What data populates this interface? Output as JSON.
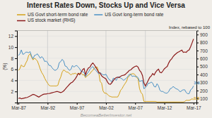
{
  "chart_data": {
    "type": "line",
    "title": "Interest Rates Down, Stocks Up and Vice Versa",
    "ylabel": "(%)",
    "y2label": "Index, rebased to 100",
    "watermark": "BecomeaBetterInvestor.net",
    "background_color": "#f0ede8",
    "grid": true,
    "legend": "top",
    "xlim": [
      1987.0,
      2017.75
    ],
    "xticks": [
      {
        "value": 1987.25,
        "label": "Mar-87"
      },
      {
        "value": 1992.25,
        "label": "Mar-92"
      },
      {
        "value": 1997.25,
        "label": "Mar-97"
      },
      {
        "value": 2002.25,
        "label": "Mar-02"
      },
      {
        "value": 2007.25,
        "label": "Mar-07"
      },
      {
        "value": 2012.25,
        "label": "Mar-12"
      },
      {
        "value": 2017.25,
        "label": "Mar-17"
      }
    ],
    "ylim": [
      0,
      13
    ],
    "yticks": [
      2,
      4,
      6,
      8,
      10,
      12
    ],
    "y2lim": [
      50,
      950
    ],
    "y2ticks": [
      100,
      200,
      300,
      400,
      500,
      600,
      700,
      800,
      900
    ],
    "vlines": [
      1992.25,
      2002.25,
      2009.0
    ],
    "annotations": [
      {
        "text": "3.0",
        "x": 2017.3,
        "y": 290,
        "axis": "y2",
        "color": "#4a90c4"
      },
      {
        "text": "0.5",
        "x": 2017.3,
        "y": 100,
        "axis": "y2",
        "color": "#d4a017"
      }
    ],
    "x": [
      1987.25,
      1987.5,
      1987.75,
      1988.0,
      1988.25,
      1988.5,
      1988.75,
      1989.0,
      1989.25,
      1989.5,
      1989.75,
      1990.0,
      1990.25,
      1990.5,
      1990.75,
      1991.0,
      1991.25,
      1991.5,
      1991.75,
      1992.0,
      1992.25,
      1992.5,
      1992.75,
      1993.0,
      1993.25,
      1993.5,
      1993.75,
      1994.0,
      1994.25,
      1994.5,
      1994.75,
      1995.0,
      1995.25,
      1995.5,
      1995.75,
      1996.0,
      1996.25,
      1996.5,
      1996.75,
      1997.0,
      1997.25,
      1997.5,
      1997.75,
      1998.0,
      1998.25,
      1998.5,
      1998.75,
      1999.0,
      1999.25,
      1999.5,
      1999.75,
      2000.0,
      2000.25,
      2000.5,
      2000.75,
      2001.0,
      2001.25,
      2001.5,
      2001.75,
      2002.0,
      2002.25,
      2002.5,
      2002.75,
      2003.0,
      2003.25,
      2003.5,
      2003.75,
      2004.0,
      2004.25,
      2004.5,
      2004.75,
      2005.0,
      2005.25,
      2005.5,
      2005.75,
      2006.0,
      2006.25,
      2006.5,
      2006.75,
      2007.0,
      2007.25,
      2007.5,
      2007.75,
      2008.0,
      2008.25,
      2008.5,
      2008.75,
      2009.0,
      2009.25,
      2009.5,
      2009.75,
      2010.0,
      2010.25,
      2010.5,
      2010.75,
      2011.0,
      2011.25,
      2011.5,
      2011.75,
      2012.0,
      2012.25,
      2012.5,
      2012.75,
      2013.0,
      2013.25,
      2013.5,
      2013.75,
      2014.0,
      2014.25,
      2014.5,
      2014.75,
      2015.0,
      2015.25,
      2015.5,
      2015.75,
      2016.0,
      2016.25,
      2016.5,
      2016.75,
      2017.0,
      2017.25
    ],
    "series": [
      {
        "name": "US Govt short-term bond rate",
        "color": "#d4a017",
        "values": [
          5.8,
          6.1,
          6.8,
          6.5,
          6.5,
          7.1,
          7.6,
          8.5,
          8.8,
          8.2,
          7.7,
          8.0,
          7.8,
          7.5,
          6.8,
          6.0,
          5.4,
          5.0,
          4.4,
          3.9,
          3.5,
          3.1,
          3.0,
          3.0,
          3.0,
          3.0,
          3.0,
          3.1,
          4.0,
          4.6,
          5.5,
          5.9,
          5.7,
          5.5,
          5.5,
          5.2,
          5.0,
          5.2,
          5.2,
          5.3,
          5.1,
          5.2,
          5.3,
          5.3,
          5.0,
          5.0,
          4.5,
          4.8,
          5.0,
          5.2,
          5.6,
          5.8,
          6.2,
          6.4,
          6.4,
          5.5,
          3.8,
          3.5,
          2.1,
          1.7,
          1.7,
          1.5,
          1.2,
          1.1,
          1.0,
          1.0,
          1.0,
          1.0,
          1.0,
          1.5,
          2.2,
          2.5,
          3.0,
          3.4,
          3.8,
          4.5,
          4.8,
          5.1,
          5.2,
          5.2,
          5.0,
          4.5,
          4.3,
          2.5,
          1.8,
          1.5,
          0.2,
          0.2,
          0.2,
          0.2,
          0.2,
          0.2,
          0.2,
          0.2,
          0.2,
          0.1,
          0.1,
          0.1,
          0.1,
          0.1,
          0.1,
          0.1,
          0.1,
          0.1,
          0.1,
          0.1,
          0.1,
          0.1,
          0.1,
          0.1,
          0.1,
          0.1,
          0.1,
          0.1,
          0.2,
          0.4,
          0.4,
          0.4,
          0.5,
          0.7,
          0.5
        ]
      },
      {
        "name": "US Govt long-term bond rate",
        "color": "#4a90c4",
        "values": [
          8.5,
          8.8,
          9.5,
          8.7,
          8.8,
          9.1,
          9.1,
          9.0,
          9.2,
          8.4,
          7.9,
          8.5,
          8.6,
          8.8,
          8.4,
          8.0,
          8.3,
          8.0,
          7.4,
          7.5,
          7.2,
          6.7,
          6.7,
          6.3,
          6.0,
          5.8,
          5.9,
          6.2,
          7.2,
          7.4,
          7.8,
          7.5,
          6.6,
          6.5,
          6.1,
          5.8,
          6.0,
          6.7,
          6.4,
          6.6,
          6.7,
          6.4,
          6.1,
          5.6,
          5.6,
          5.4,
          4.7,
          5.2,
          5.5,
          6.0,
          6.3,
          6.5,
          6.1,
          5.8,
          5.5,
          5.2,
          5.4,
          5.2,
          5.0,
          5.0,
          5.1,
          4.6,
          4.2,
          4.0,
          3.7,
          4.4,
          4.3,
          4.0,
          4.5,
          4.7,
          4.4,
          4.3,
          4.0,
          4.2,
          4.4,
          4.7,
          5.1,
          5.1,
          4.7,
          4.8,
          4.7,
          4.7,
          4.5,
          3.8,
          3.9,
          4.0,
          2.5,
          2.7,
          3.0,
          3.5,
          3.5,
          3.7,
          3.5,
          2.9,
          2.8,
          3.4,
          3.0,
          2.2,
          2.0,
          2.0,
          1.8,
          1.7,
          1.7,
          2.0,
          2.5,
          2.6,
          2.9,
          2.7,
          2.5,
          2.4,
          2.2,
          1.9,
          2.2,
          2.3,
          2.3,
          1.8,
          1.6,
          1.6,
          2.3,
          2.5,
          3.0
        ]
      },
      {
        "name": "US stock market (RHS)",
        "color": "#8b1a1a",
        "axis": "y2",
        "values": [
          100,
          108,
          97,
          102,
          106,
          110,
          114,
          122,
          132,
          143,
          152,
          148,
          138,
          128,
          118,
          132,
          142,
          152,
          157,
          157,
          162,
          162,
          167,
          172,
          177,
          182,
          187,
          187,
          180,
          175,
          182,
          195,
          215,
          238,
          258,
          278,
          295,
          305,
          325,
          348,
          378,
          415,
          398,
          428,
          462,
          475,
          398,
          452,
          482,
          492,
          525,
          545,
          522,
          492,
          460,
          428,
          418,
          385,
          368,
          358,
          345,
          308,
          282,
          278,
          298,
          325,
          348,
          362,
          368,
          362,
          378,
          388,
          392,
          398,
          415,
          432,
          452,
          458,
          478,
          492,
          502,
          508,
          492,
          452,
          432,
          388,
          295,
          258,
          292,
          328,
          365,
          382,
          412,
          395,
          428,
          452,
          468,
          428,
          422,
          445,
          472,
          488,
          502,
          545,
          578,
          595,
          625,
          645,
          660,
          675,
          685,
          695,
          705,
          678,
          682,
          678,
          698,
          708,
          748,
          795,
          845
        ]
      }
    ]
  }
}
